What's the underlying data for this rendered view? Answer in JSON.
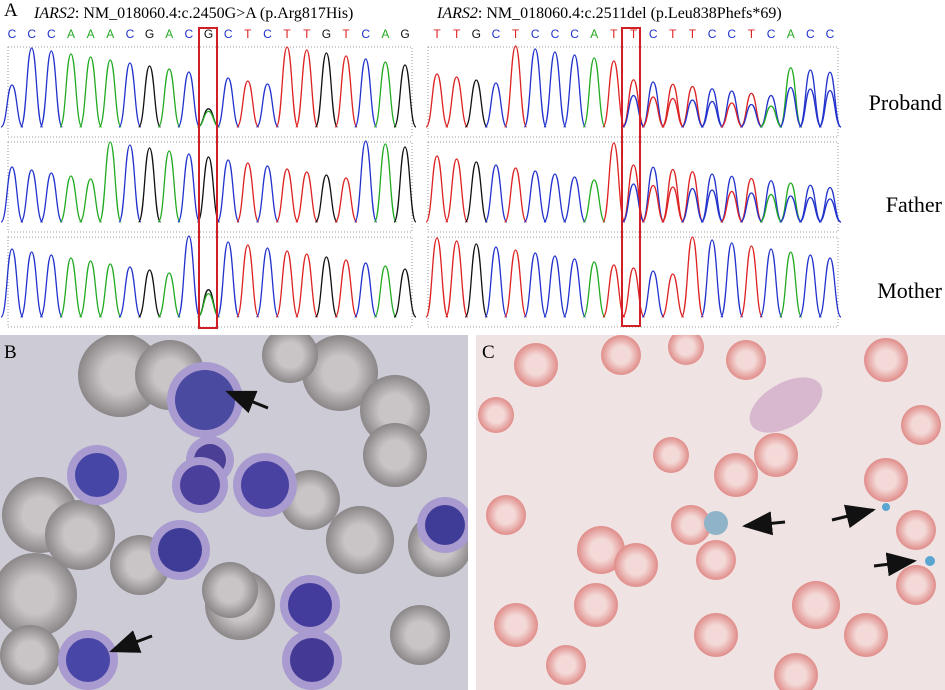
{
  "panel_a": {
    "label": "A",
    "left": {
      "gene": "IARS2",
      "variant": ": NM_018060.4:c.2450G>A (p.Arg817His)",
      "sequence": [
        "C",
        "C",
        "C",
        "A",
        "A",
        "A",
        "C",
        "G",
        "A",
        "C",
        "G",
        "C",
        "T",
        "C",
        "T",
        "T",
        "G",
        "T",
        "C",
        "A",
        "G"
      ]
    },
    "right": {
      "gene": "IARS2",
      "variant": ": NM_018060.4:c.2511del (p.Leu838Phefs*69)",
      "sequence": [
        "T",
        "T",
        "G",
        "C",
        "T",
        "C",
        "C",
        "C",
        "A",
        "T",
        "T",
        "C",
        "T",
        "T",
        "C",
        "C",
        "T",
        "C",
        "A",
        "C",
        "C"
      ]
    },
    "samples": [
      "Proband",
      "Father",
      "Mother"
    ]
  },
  "panel_b": {
    "label": "B"
  },
  "panel_c": {
    "label": "C"
  }
}
